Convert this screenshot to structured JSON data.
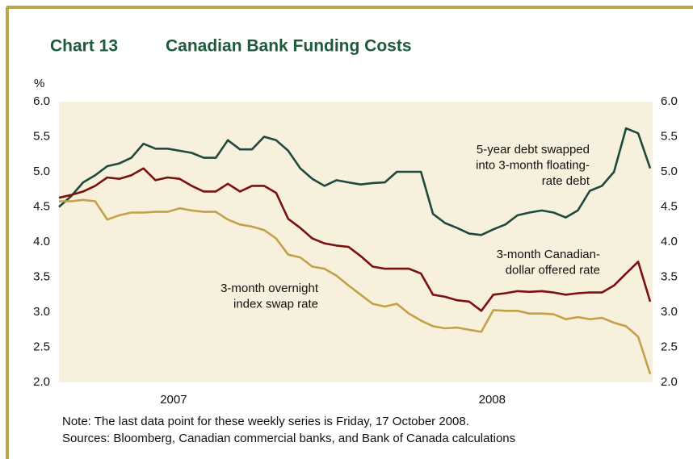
{
  "chart_data": {
    "type": "line",
    "label": "Chart 13",
    "title": "Canadian Bank Funding Costs",
    "y_axis_label": "%",
    "xlim": [
      0,
      49.2
    ],
    "xticks": [
      {
        "value": 9.5,
        "label": "2007"
      },
      {
        "value": 35.9,
        "label": "2008"
      }
    ],
    "ylim": [
      2.0,
      6.0
    ],
    "yticks": [
      {
        "value": 2.0,
        "label": "2.0"
      },
      {
        "value": 2.5,
        "label": "2.5"
      },
      {
        "value": 3.0,
        "label": "3.0"
      },
      {
        "value": 3.5,
        "label": "3.5"
      },
      {
        "value": 4.0,
        "label": "4.0"
      },
      {
        "value": 4.5,
        "label": "4.5"
      },
      {
        "value": 5.0,
        "label": "5.0"
      },
      {
        "value": 5.5,
        "label": "5.5"
      },
      {
        "value": 6.0,
        "label": "6.0"
      }
    ],
    "y2lim": [
      2.0,
      6.0
    ],
    "y2ticks": [
      {
        "value": 2.0,
        "label": "2.0"
      },
      {
        "value": 2.5,
        "label": "2.5"
      },
      {
        "value": 3.0,
        "label": "3.0"
      },
      {
        "value": 3.5,
        "label": "3.5"
      },
      {
        "value": 4.0,
        "label": "4.0"
      },
      {
        "value": 4.5,
        "label": "4.5"
      },
      {
        "value": 5.0,
        "label": "5.0"
      },
      {
        "value": 5.5,
        "label": "5.5"
      },
      {
        "value": 6.0,
        "label": "6.0"
      }
    ],
    "series": [
      {
        "name": [
          "5-year debt swapped",
          "into 3-month floating-",
          "rate debt"
        ],
        "color": "#1e4a3e",
        "values": [
          4.5,
          4.65,
          4.85,
          4.95,
          5.08,
          5.12,
          5.2,
          5.4,
          5.33,
          5.33,
          5.3,
          5.27,
          5.2,
          5.2,
          5.45,
          5.32,
          5.32,
          5.5,
          5.45,
          5.3,
          5.05,
          4.9,
          4.8,
          4.88,
          4.85,
          4.82,
          4.84,
          4.85,
          5.0,
          5.0,
          5.0,
          4.4,
          4.27,
          4.2,
          4.12,
          4.1,
          4.18,
          4.25,
          4.38,
          4.42,
          4.45,
          4.42,
          4.35,
          4.45,
          4.73,
          4.8,
          5.0,
          5.62,
          5.55,
          5.05
        ]
      },
      {
        "name": [
          "3-month Canadian-",
          "dollar offered rate"
        ],
        "color": "#7a1012",
        "values": [
          4.63,
          4.67,
          4.72,
          4.8,
          4.92,
          4.9,
          4.95,
          5.05,
          4.88,
          4.92,
          4.9,
          4.8,
          4.72,
          4.72,
          4.83,
          4.72,
          4.8,
          4.8,
          4.7,
          4.33,
          4.2,
          4.05,
          3.98,
          3.95,
          3.93,
          3.8,
          3.65,
          3.62,
          3.62,
          3.62,
          3.55,
          3.25,
          3.22,
          3.17,
          3.15,
          3.02,
          3.25,
          3.27,
          3.3,
          3.29,
          3.3,
          3.28,
          3.25,
          3.27,
          3.28,
          3.28,
          3.38,
          3.55,
          3.72,
          3.15
        ]
      },
      {
        "name": [
          "3-month overnight",
          "index swap rate"
        ],
        "color": "#c2a247",
        "values": [
          4.58,
          4.58,
          4.6,
          4.58,
          4.32,
          4.38,
          4.42,
          4.42,
          4.43,
          4.43,
          4.48,
          4.45,
          4.43,
          4.43,
          4.32,
          4.25,
          4.22,
          4.17,
          4.05,
          3.82,
          3.78,
          3.65,
          3.62,
          3.52,
          3.38,
          3.25,
          3.12,
          3.08,
          3.12,
          2.98,
          2.88,
          2.8,
          2.77,
          2.78,
          2.75,
          2.72,
          3.03,
          3.02,
          3.02,
          2.98,
          2.98,
          2.97,
          2.9,
          2.93,
          2.9,
          2.92,
          2.85,
          2.8,
          2.65,
          2.12
        ]
      }
    ],
    "notes": [
      "Note: The last data point for these weekly series is Friday, 17 October 2008.",
      "Sources: Bloomberg, Canadian commercial banks, and Bank of Canada calculations"
    ]
  }
}
